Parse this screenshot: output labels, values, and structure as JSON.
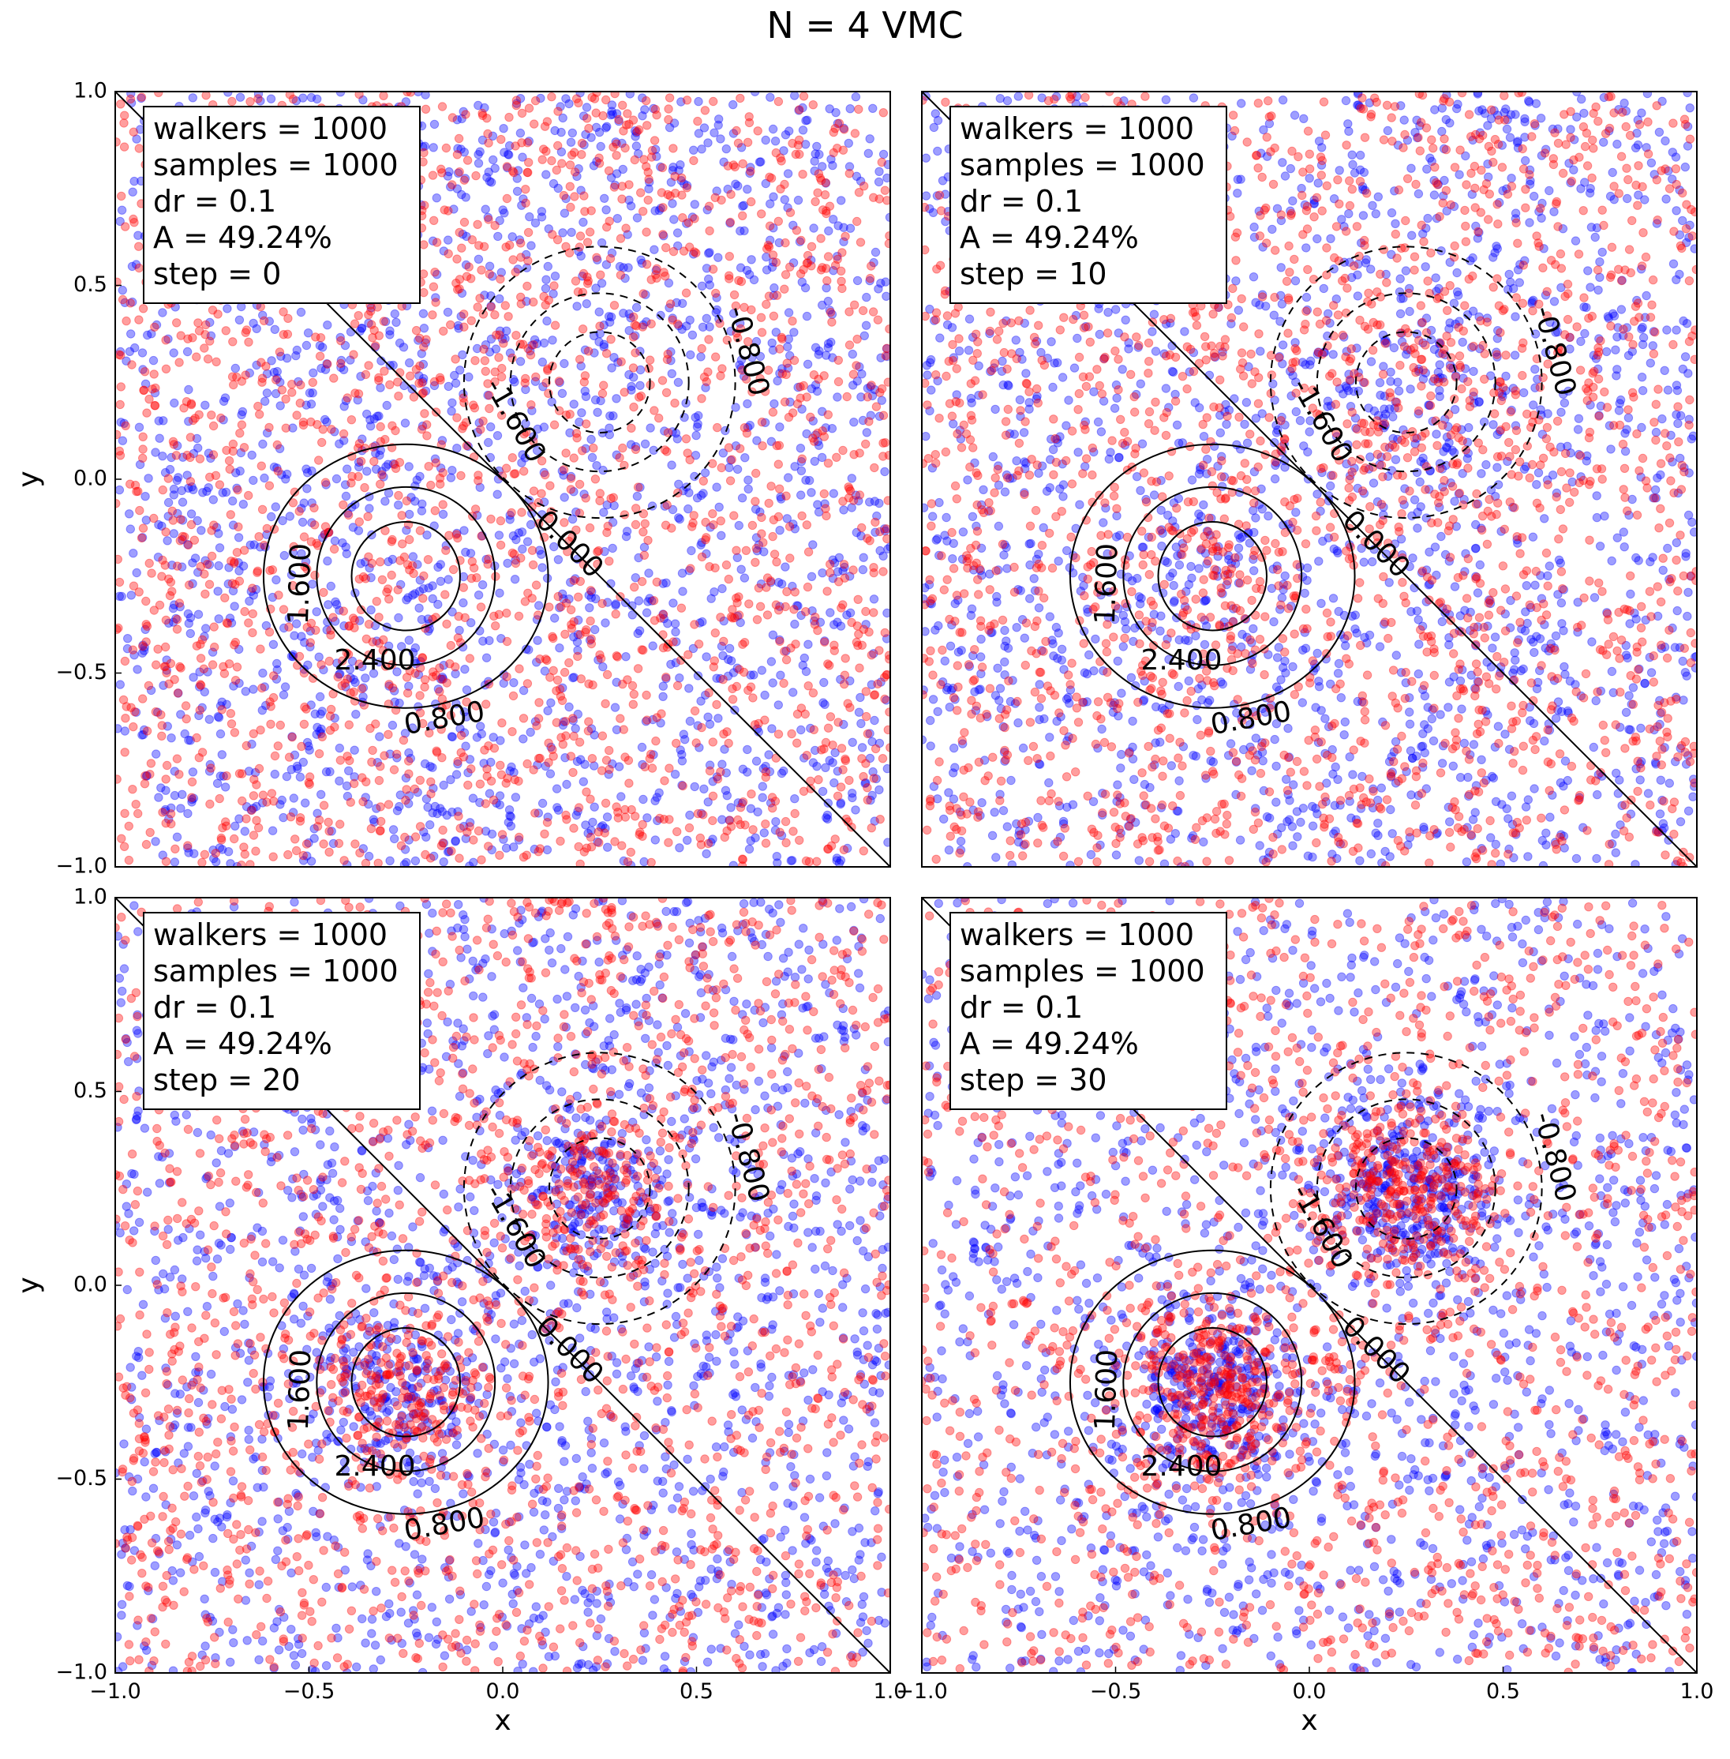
{
  "figure_title": "N = 4 VMC",
  "colors": {
    "walker_a": "#0000ff",
    "walker_b": "#ff0000",
    "contour": "#000000",
    "background": "#ffffff"
  },
  "chart_data": [
    {
      "type": "scatter",
      "panel": "top-left",
      "step": 0,
      "info_lines": [
        "walkers = 1000",
        "samples = 1000",
        "dr = 0.1",
        "A  = 49.24%",
        "step = 0"
      ],
      "xlabel": "",
      "ylabel": "y",
      "xlim": [
        -1.0,
        1.0
      ],
      "ylim": [
        -1.0,
        1.0
      ],
      "xticks": [],
      "yticks": [
        "1.0",
        "0.5",
        "0.0",
        "−0.5",
        "−1.0"
      ],
      "grid": false,
      "series": [
        {
          "color": "blue",
          "distribution": "uniform over the square",
          "count_approx": 2000
        },
        {
          "color": "red",
          "distribution": "uniform over the square",
          "count_approx": 2000
        }
      ]
    },
    {
      "type": "scatter",
      "panel": "top-right",
      "step": 10,
      "info_lines": [
        "walkers = 1000",
        "samples = 1000",
        "dr = 0.1",
        "A  = 49.24%",
        "step = 10"
      ],
      "xlabel": "",
      "ylabel": "",
      "xlim": [
        -1.0,
        1.0
      ],
      "ylim": [
        -1.0,
        1.0
      ],
      "xticks": [],
      "yticks": [],
      "grid": false,
      "series": [
        {
          "color": "blue",
          "distribution": "mostly uniform, slight clustering near (-0.25,-0.25) and (0.25,0.25)",
          "count_approx": 2000
        },
        {
          "color": "red",
          "distribution": "mostly uniform, slight clustering near (-0.25,-0.25) and (0.25,0.25)",
          "count_approx": 2000
        }
      ]
    },
    {
      "type": "scatter",
      "panel": "bottom-left",
      "step": 20,
      "info_lines": [
        "walkers = 1000",
        "samples = 1000",
        "dr = 0.1",
        "A  = 49.24%",
        "step = 20"
      ],
      "xlabel": "x",
      "ylabel": "y",
      "xlim": [
        -1.0,
        1.0
      ],
      "ylim": [
        -1.0,
        1.0
      ],
      "xticks": [
        "−1.0",
        "−0.5",
        "0.0",
        "0.5",
        "1.0"
      ],
      "yticks": [
        "1.0",
        "0.5",
        "0.0",
        "−0.5",
        "−1.0"
      ],
      "grid": false,
      "series": [
        {
          "color": "blue",
          "distribution": "clusters at (-0.25,-0.25) and (0.25,0.25) plus uniform background",
          "count_approx": 2000
        },
        {
          "color": "red",
          "distribution": "clusters at (-0.25,-0.25) and (0.25,0.25) plus uniform background",
          "count_approx": 2000
        }
      ]
    },
    {
      "type": "scatter",
      "panel": "bottom-right",
      "step": 30,
      "info_lines": [
        "walkers = 1000",
        "samples = 1000",
        "dr = 0.1",
        "A  = 49.24%",
        "step = 30"
      ],
      "xlabel": "x",
      "ylabel": "",
      "xlim": [
        -1.0,
        1.0
      ],
      "ylim": [
        -1.0,
        1.0
      ],
      "xticks": [
        "−1.0",
        "−0.5",
        "0.0",
        "0.5",
        "1.0"
      ],
      "yticks": [],
      "grid": false,
      "series": [
        {
          "color": "blue",
          "distribution": "strong clusters at (-0.25,-0.25) and (0.25,0.25) plus uniform background",
          "count_approx": 2000
        },
        {
          "color": "red",
          "distribution": "strong clusters at (-0.25,-0.25) and (0.25,0.25) plus uniform background",
          "count_approx": 2000
        }
      ]
    }
  ],
  "contours": {
    "lower_center": [
      -0.25,
      -0.25
    ],
    "upper_center": [
      0.25,
      0.25
    ],
    "zero_line": [
      [
        -1.0,
        1.0
      ],
      [
        1.0,
        -1.0
      ]
    ],
    "levels": [
      {
        "level": "0.000",
        "style": "solid",
        "shape": "diagonal line"
      },
      {
        "level": "0.800",
        "style": "solid",
        "around": "lower_center"
      },
      {
        "level": "1.600",
        "style": "solid",
        "around": "lower_center"
      },
      {
        "level": "2.400",
        "style": "solid",
        "around": "lower_center"
      },
      {
        "level": "-0.800",
        "style": "dashed",
        "around": "upper_center"
      },
      {
        "level": "-1.600",
        "style": "dashed",
        "around": "upper_center"
      },
      {
        "level": "-2.400",
        "style": "dashed",
        "around": "upper_center"
      }
    ],
    "printed_labels": [
      "1.600",
      "2.400",
      "0.800",
      "0.000",
      "-1.600",
      "-0.800"
    ]
  }
}
